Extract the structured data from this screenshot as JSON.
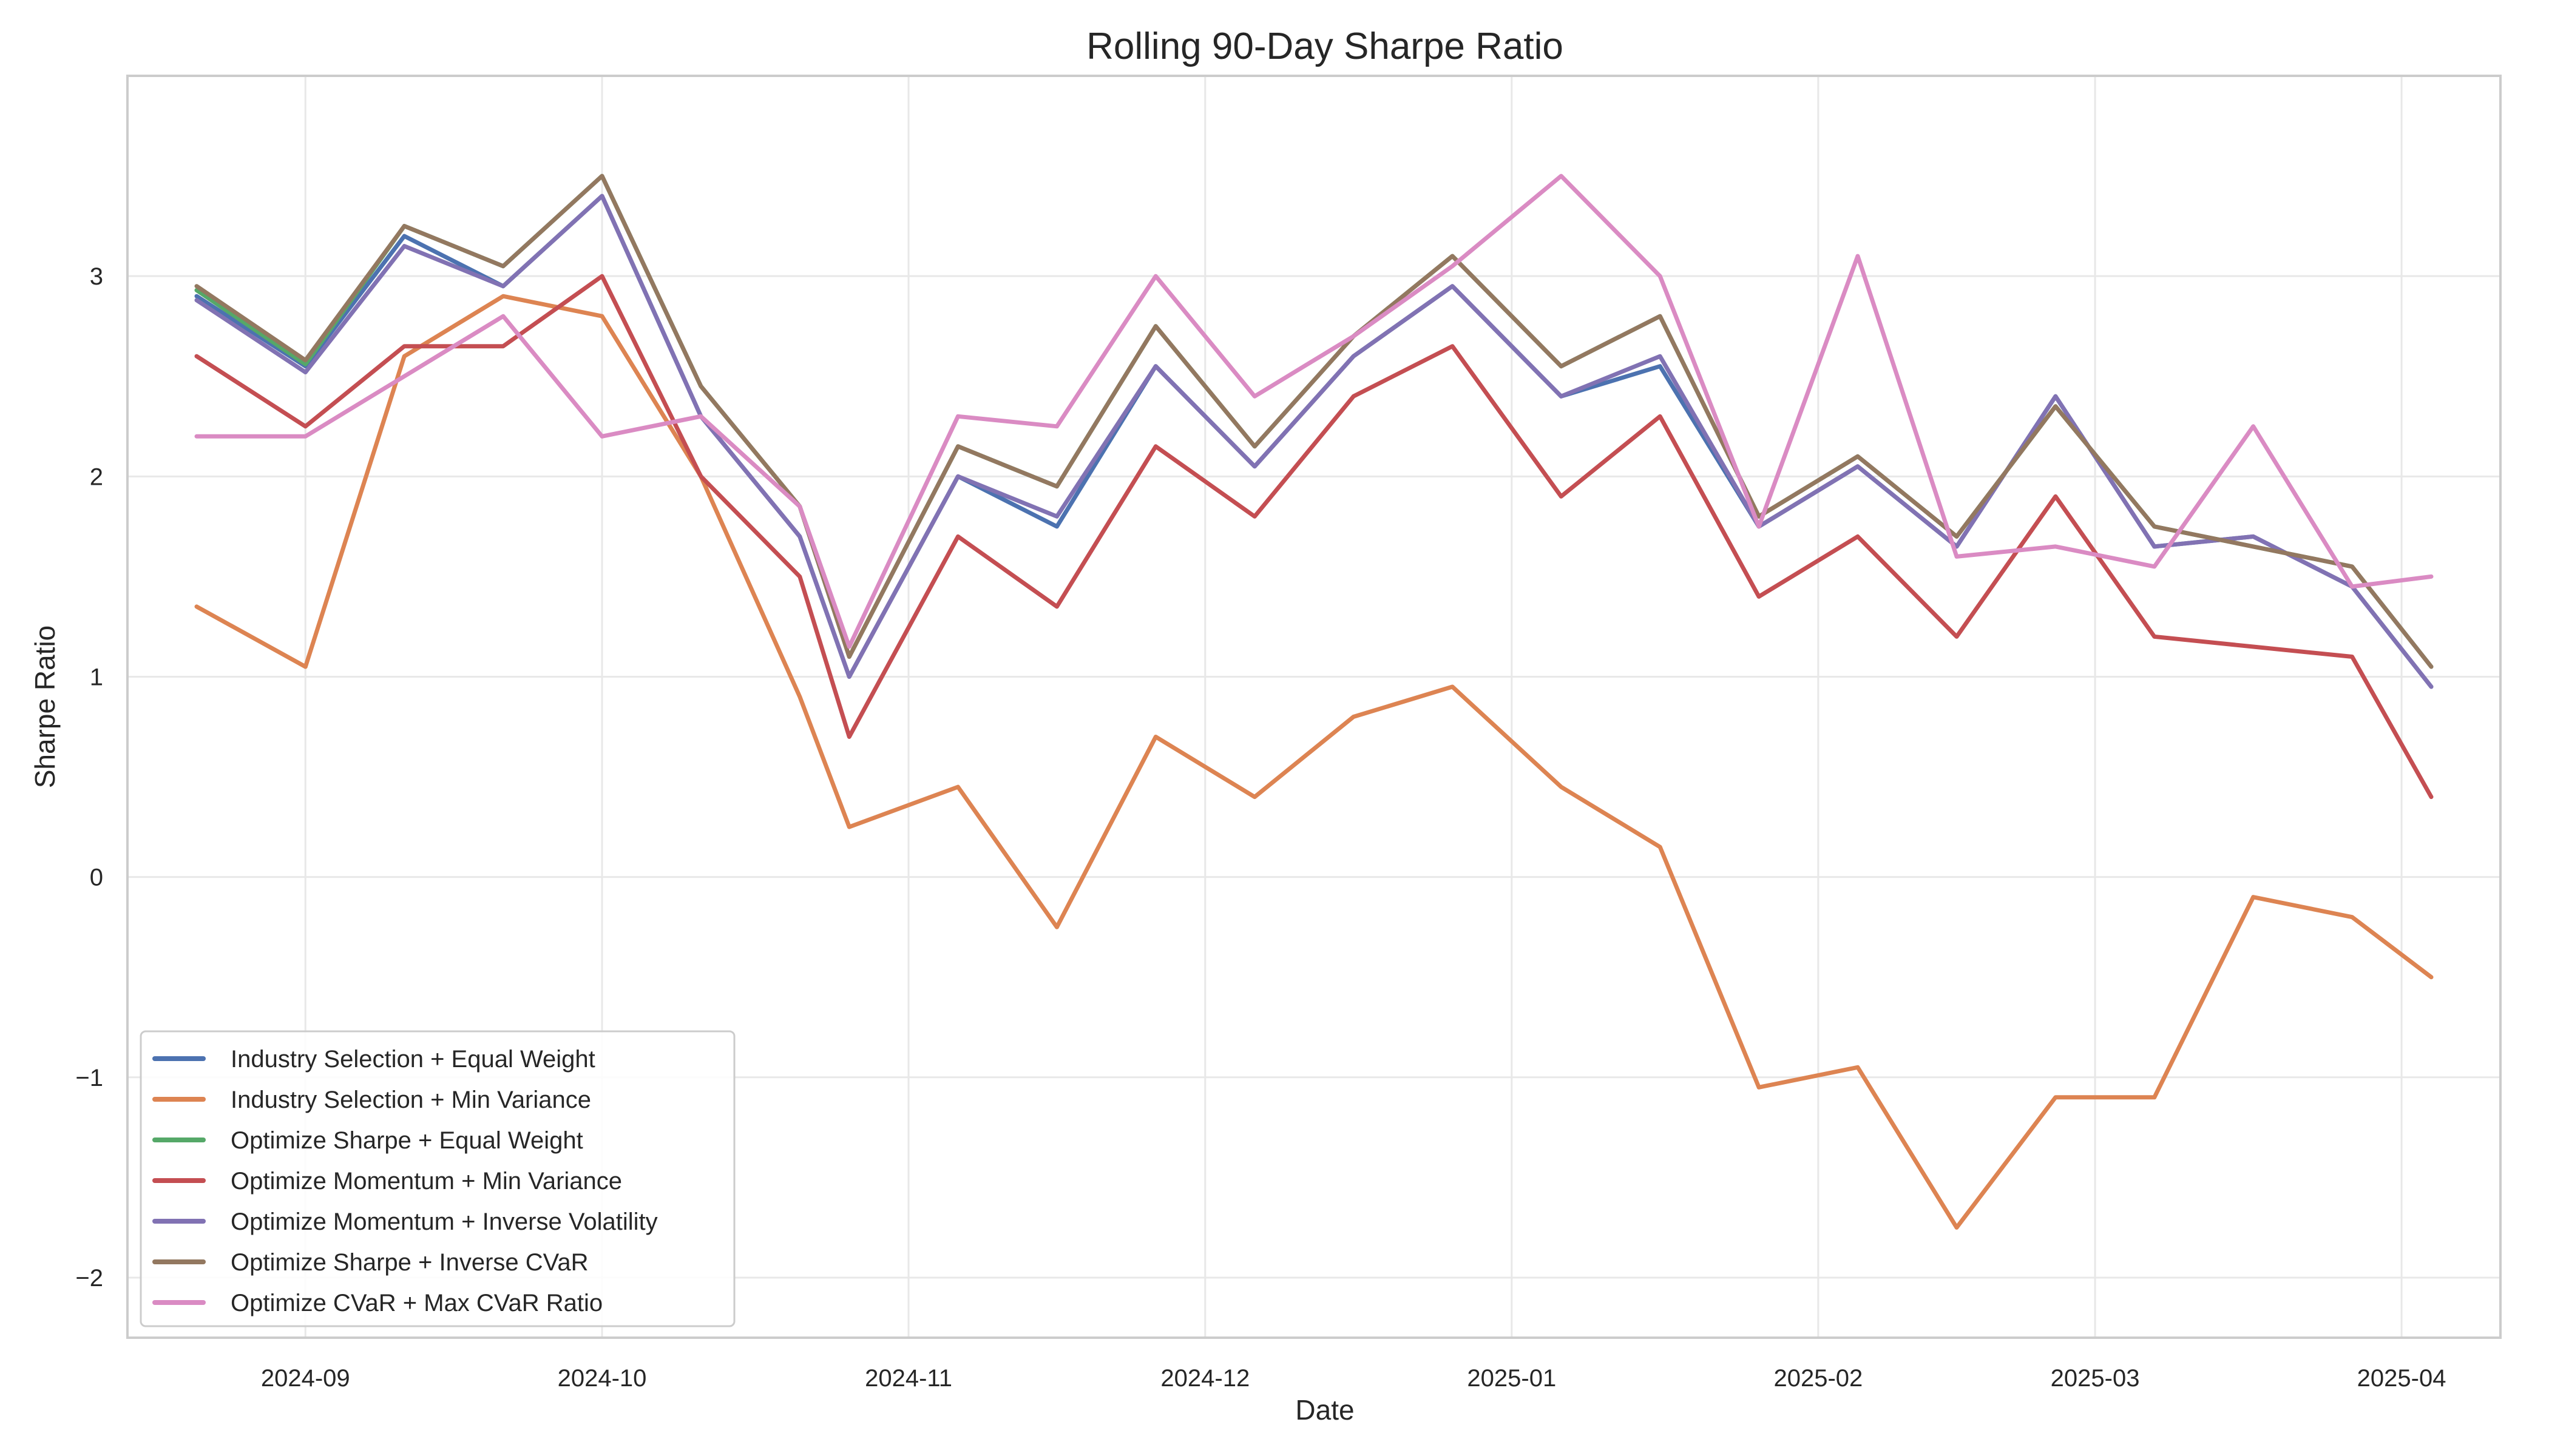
{
  "chart_data": {
    "type": "line",
    "title": "Rolling 90-Day Sharpe Ratio",
    "xlabel": "Date",
    "ylabel": "Sharpe Ratio",
    "xlim": [
      "2024-08-14",
      "2025-04-11"
    ],
    "ylim": [
      -2.3,
      4.0
    ],
    "x_ticks": [
      "2024-09",
      "2024-10",
      "2024-11",
      "2024-12",
      "2025-01",
      "2025-02",
      "2025-03",
      "2025-04"
    ],
    "y_ticks": [
      -2,
      -1,
      0,
      1,
      2,
      3
    ],
    "y_tick_labels": [
      "−2",
      "−1",
      "0",
      "1",
      "2",
      "3"
    ],
    "grid": true,
    "legend_position": "lower-left",
    "x": [
      "2024-08-21",
      "2024-09-01",
      "2024-09-11",
      "2024-09-21",
      "2024-10-01",
      "2024-10-11",
      "2024-10-21",
      "2024-10-26",
      "2024-11-06",
      "2024-11-16",
      "2024-11-26",
      "2024-12-06",
      "2024-12-16",
      "2024-12-26",
      "2025-01-06",
      "2025-01-16",
      "2025-01-26",
      "2025-02-05",
      "2025-02-15",
      "2025-02-25",
      "2025-03-07",
      "2025-03-17",
      "2025-03-27",
      "2025-04-04"
    ],
    "series": [
      {
        "name": "Industry Selection + Equal Weight",
        "color": "#4c72b0",
        "values": [
          2.9,
          2.55,
          3.2,
          2.95,
          3.4,
          2.3,
          1.7,
          1.0,
          2.0,
          1.75,
          2.55,
          2.05,
          2.6,
          2.95,
          2.4,
          2.55,
          1.75,
          2.05,
          1.65,
          2.4,
          1.65,
          1.7,
          1.45,
          0.95
        ]
      },
      {
        "name": "Industry Selection + Min Variance",
        "color": "#dd8452",
        "values": [
          1.35,
          1.05,
          2.6,
          2.9,
          2.8,
          2.0,
          0.9,
          0.25,
          0.45,
          -0.25,
          0.7,
          0.4,
          0.8,
          0.95,
          0.45,
          0.15,
          -1.05,
          -0.95,
          -1.75,
          -1.1,
          -1.1,
          -0.1,
          -0.2,
          -0.5
        ]
      },
      {
        "name": "Optimize Sharpe + Equal Weight",
        "color": "#55a868",
        "values": [
          2.93,
          2.56,
          3.25,
          3.05,
          3.5,
          2.45,
          1.85,
          1.1,
          2.15,
          1.95,
          2.75,
          2.15,
          2.7,
          3.1,
          2.55,
          2.8,
          1.8,
          2.1,
          1.7,
          2.35,
          1.75,
          1.65,
          1.55,
          1.05
        ]
      },
      {
        "name": "Optimize Momentum + Min Variance",
        "color": "#c44e52",
        "values": [
          2.6,
          2.25,
          2.65,
          2.65,
          3.0,
          2.0,
          1.5,
          0.7,
          1.7,
          1.35,
          2.15,
          1.8,
          2.4,
          2.65,
          1.9,
          2.3,
          1.4,
          1.7,
          1.2,
          1.9,
          1.2,
          1.15,
          1.1,
          0.4
        ]
      },
      {
        "name": "Optimize Momentum + Inverse Volatility",
        "color": "#8172b3",
        "values": [
          2.88,
          2.52,
          3.15,
          2.95,
          3.4,
          2.3,
          1.7,
          1.0,
          2.0,
          1.8,
          2.55,
          2.05,
          2.6,
          2.95,
          2.4,
          2.6,
          1.75,
          2.05,
          1.65,
          2.4,
          1.65,
          1.7,
          1.45,
          0.95
        ]
      },
      {
        "name": "Optimize Sharpe + Inverse CVaR",
        "color": "#937860",
        "values": [
          2.95,
          2.58,
          3.25,
          3.05,
          3.5,
          2.45,
          1.85,
          1.1,
          2.15,
          1.95,
          2.75,
          2.15,
          2.7,
          3.1,
          2.55,
          2.8,
          1.8,
          2.1,
          1.7,
          2.35,
          1.75,
          1.65,
          1.55,
          1.05
        ]
      },
      {
        "name": "Optimize CVaR + Max CVaR Ratio",
        "color": "#da8bc3",
        "values": [
          2.2,
          2.2,
          2.5,
          2.8,
          2.2,
          2.3,
          1.85,
          1.15,
          2.3,
          2.25,
          3.0,
          2.4,
          2.7,
          3.05,
          3.5,
          3.0,
          1.75,
          3.1,
          1.6,
          1.65,
          1.55,
          2.25,
          1.45,
          1.5
        ]
      }
    ]
  }
}
